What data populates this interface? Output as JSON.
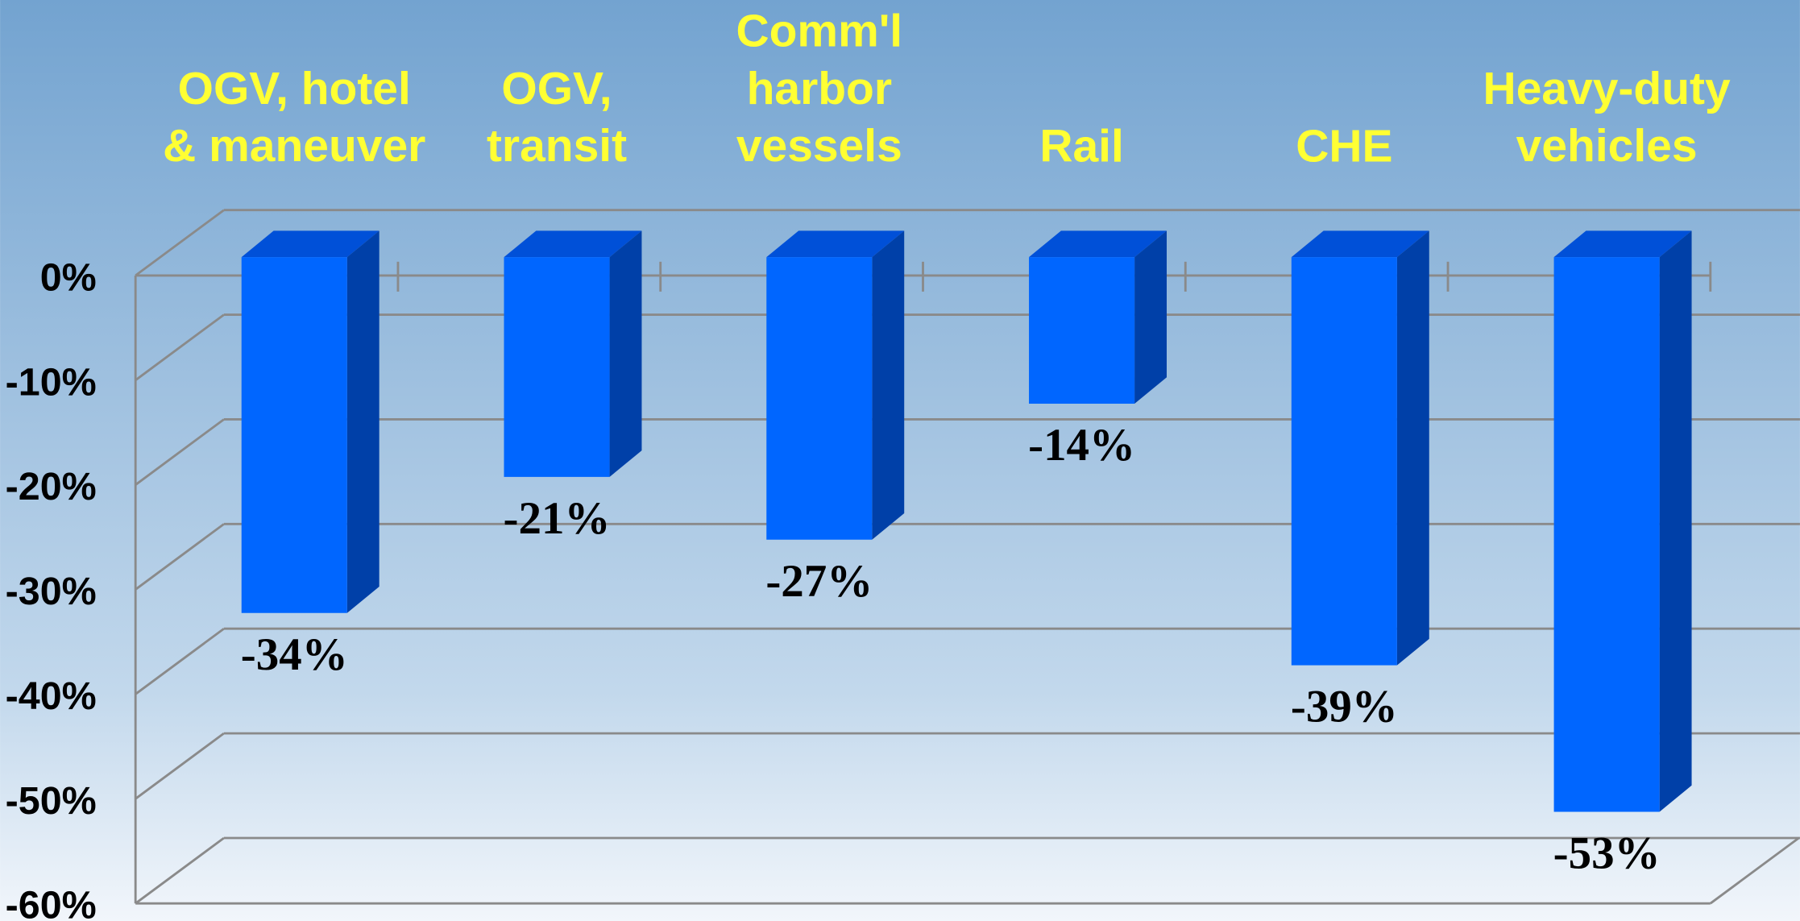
{
  "chart_data": {
    "type": "bar",
    "categories": [
      "OGV, hotel\n& maneuver",
      "OGV,\ntransit",
      "Comm'l\nharbor\nvessels",
      "Rail",
      "CHE",
      "Heavy-duty\nvehicles"
    ],
    "values": [
      -34,
      -21,
      -27,
      -14,
      -39,
      -53
    ],
    "value_labels": [
      "-34%",
      "-21%",
      "-27%",
      "-14%",
      "-39%",
      "-53%"
    ],
    "color": "#0066ff",
    "ylim": [
      -60,
      0
    ],
    "yticks": [
      {
        "value": 0,
        "label": "0%"
      },
      {
        "value": -10,
        "label": "-10%"
      },
      {
        "value": -20,
        "label": "-20%"
      },
      {
        "value": -30,
        "label": "-30%"
      },
      {
        "value": -40,
        "label": "-40%"
      },
      {
        "value": -50,
        "label": "-50%"
      },
      {
        "value": -60,
        "label": "-60%"
      }
    ],
    "grid": true
  }
}
